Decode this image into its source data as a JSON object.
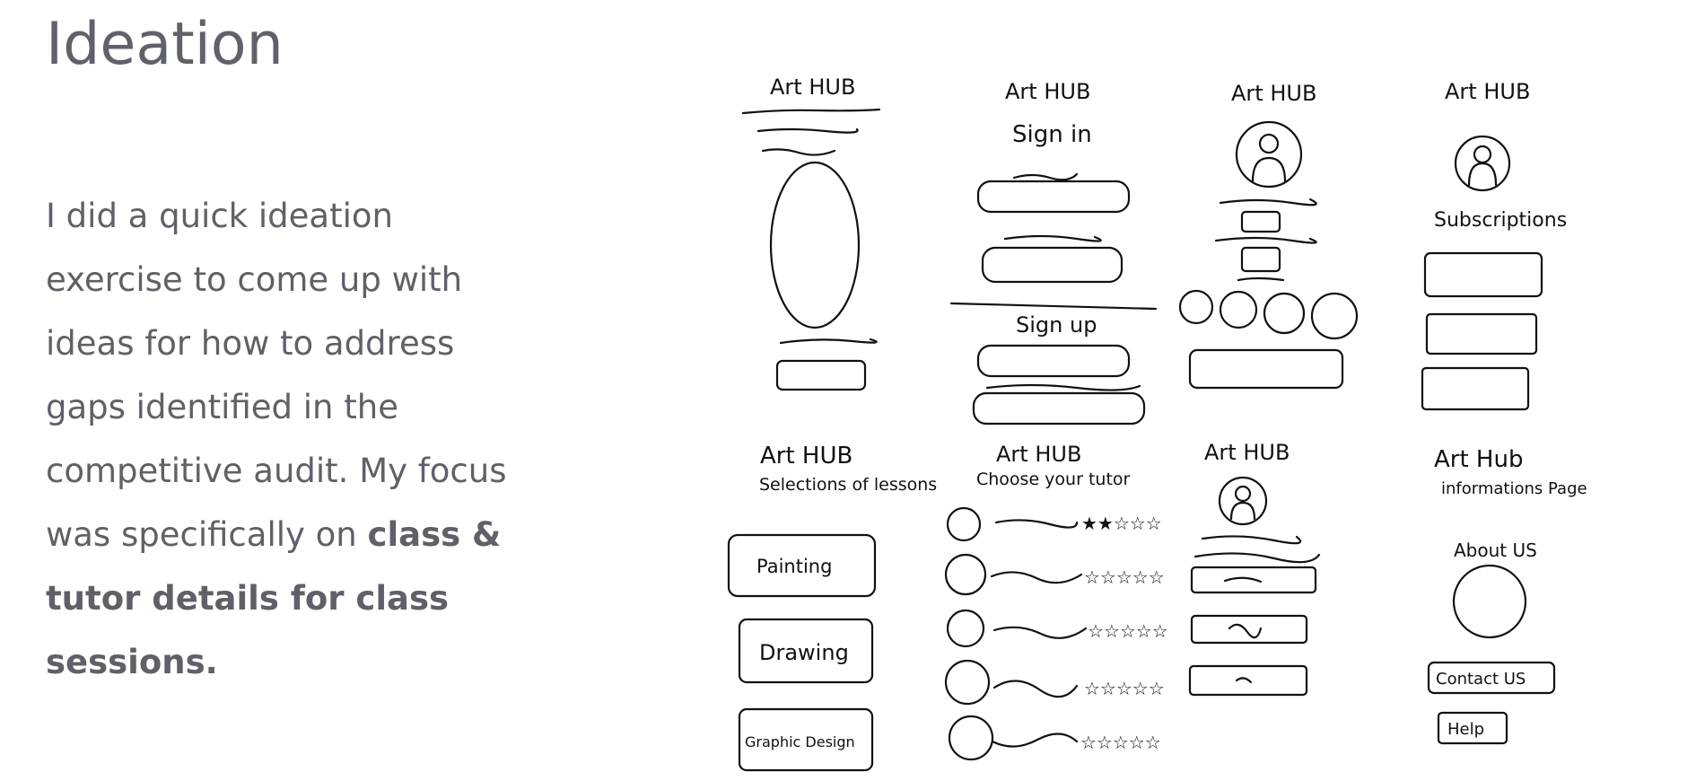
{
  "heading": "Ideation",
  "body": {
    "intro": "I did a quick ideation exercise to come up with ideas for how to address gaps identified in the competitive audit. My focus was specifically on",
    "emphasis": "class & tutor details for class sessions."
  },
  "sketches": {
    "top_row": [
      {
        "brand": "Art HUB"
      },
      {
        "brand": "Art HUB",
        "heading": "Sign in",
        "heading2": "Sign up"
      },
      {
        "brand": "Art HUB"
      },
      {
        "brand": "Art HUB",
        "heading": "Subscriptions"
      }
    ],
    "bottom_row": [
      {
        "brand": "Art HUB",
        "heading": "Selections of lessons",
        "buttons": [
          "Painting",
          "Drawing",
          "Graphic Design"
        ]
      },
      {
        "brand": "Art HUB",
        "heading": "Choose your tutor"
      },
      {
        "brand": "Art HUB"
      },
      {
        "brand": "Art Hub",
        "heading": "informations Page",
        "subheading": "About US",
        "buttons": [
          "Contact US",
          "Help"
        ]
      }
    ]
  }
}
